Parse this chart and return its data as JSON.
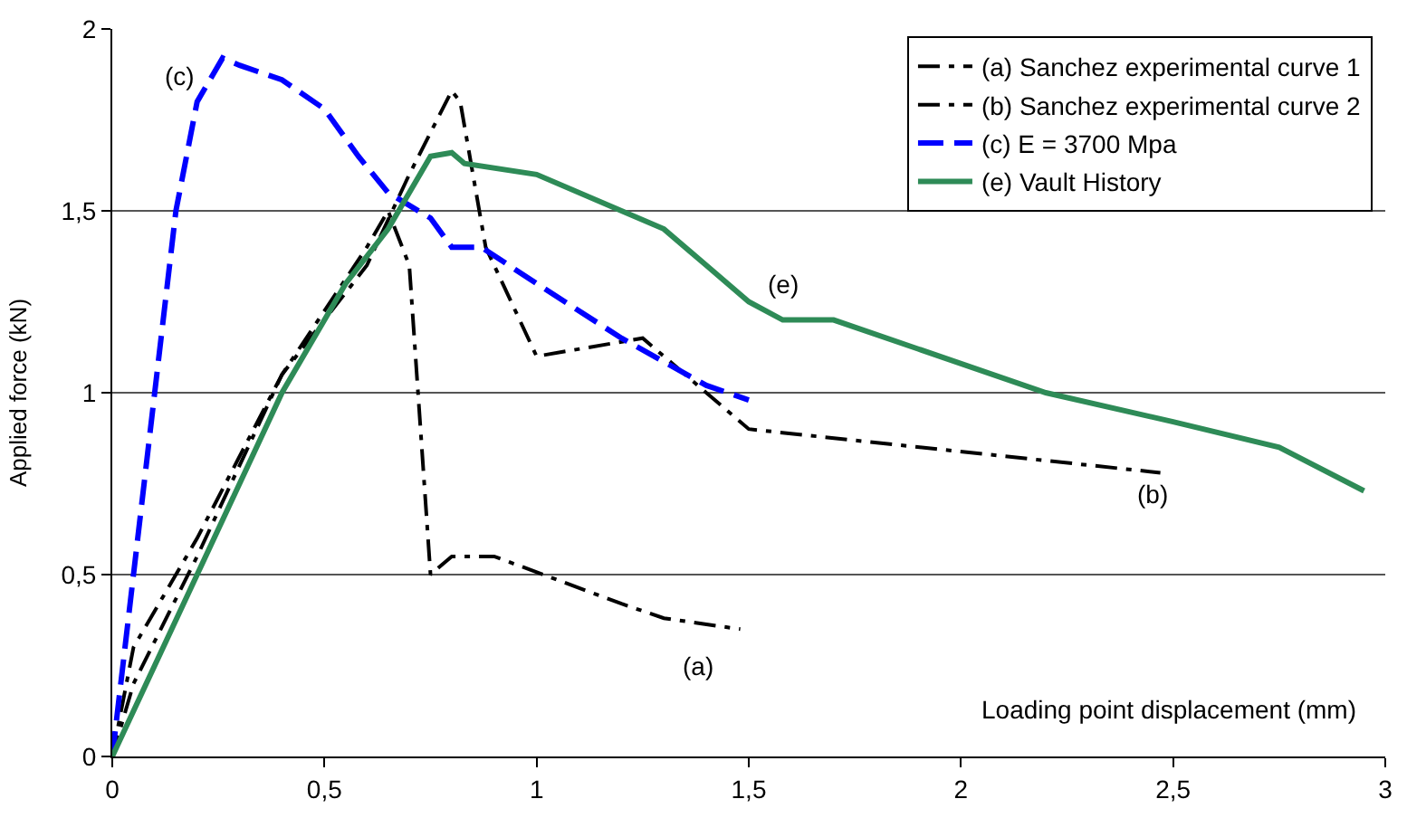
{
  "chart_data": {
    "type": "line",
    "xlabel": "Loading point displacement (mm)",
    "ylabel": "Applied force (kN)",
    "xlim": [
      0,
      3
    ],
    "xticks": [
      0,
      {
        "value": 0.5,
        "label": "0,5"
      },
      1,
      {
        "value": 1.5,
        "label": "1,5"
      },
      2,
      {
        "value": 2.5,
        "label": "2,5"
      },
      3
    ],
    "ylim": [
      0,
      2
    ],
    "yticks": [
      0,
      {
        "value": 0.5,
        "label": "0,5"
      },
      1,
      {
        "value": 1.5,
        "label": "1,5"
      },
      2
    ],
    "grid": "y",
    "legend": "top right",
    "series": [
      {
        "name": "(a) Sanchez experimental curve 1",
        "color": "#000000",
        "line_style": "dashdot",
        "x": [
          0,
          0.05,
          0.1,
          0.2,
          0.4,
          0.6,
          0.65,
          0.7,
          0.75,
          0.8,
          0.9,
          1.2,
          1.3,
          1.48
        ],
        "values": [
          0,
          0.3,
          0.4,
          0.6,
          1.05,
          1.4,
          1.5,
          1.35,
          0.5,
          0.55,
          0.55,
          0.42,
          0.38,
          0.35
        ]
      },
      {
        "name": "(b) Sanchez experimental curve 2",
        "color": "#000000",
        "line_style": "dashdot",
        "x": [
          0,
          0.05,
          0.2,
          0.4,
          0.6,
          0.7,
          0.8,
          0.82,
          0.88,
          1.0,
          1.25,
          1.5,
          2.47
        ],
        "values": [
          0,
          0.2,
          0.55,
          1.05,
          1.35,
          1.6,
          1.83,
          1.8,
          1.4,
          1.1,
          1.15,
          0.9,
          0.78
        ]
      },
      {
        "name": "(c) E = 3700 Mpa",
        "color": "#0000ff",
        "line_style": "dashed",
        "x": [
          0,
          0.05,
          0.1,
          0.15,
          0.2,
          0.26,
          0.3,
          0.4,
          0.5,
          0.58,
          0.65,
          0.75,
          0.8,
          0.87,
          1.0,
          1.2,
          1.4,
          1.5
        ],
        "values": [
          0,
          0.5,
          1.0,
          1.5,
          1.8,
          1.92,
          1.9,
          1.86,
          1.78,
          1.65,
          1.55,
          1.48,
          1.4,
          1.4,
          1.3,
          1.15,
          1.02,
          0.98
        ]
      },
      {
        "name": "(e) Vault History",
        "color": "#2e8b57",
        "line_style": "solid",
        "x": [
          0,
          0.2,
          0.4,
          0.55,
          0.65,
          0.75,
          0.8,
          0.83,
          1.0,
          1.2,
          1.3,
          1.4,
          1.5,
          1.58,
          1.7,
          1.9,
          2.2,
          2.5,
          2.75,
          2.95
        ],
        "values": [
          0,
          0.5,
          1.0,
          1.3,
          1.45,
          1.65,
          1.66,
          1.63,
          1.6,
          1.5,
          1.45,
          1.35,
          1.25,
          1.2,
          1.2,
          1.12,
          1.0,
          0.92,
          0.85,
          0.73
        ]
      }
    ],
    "annotations": [
      "(a)",
      "(b)",
      "(c)",
      "(e)"
    ]
  }
}
